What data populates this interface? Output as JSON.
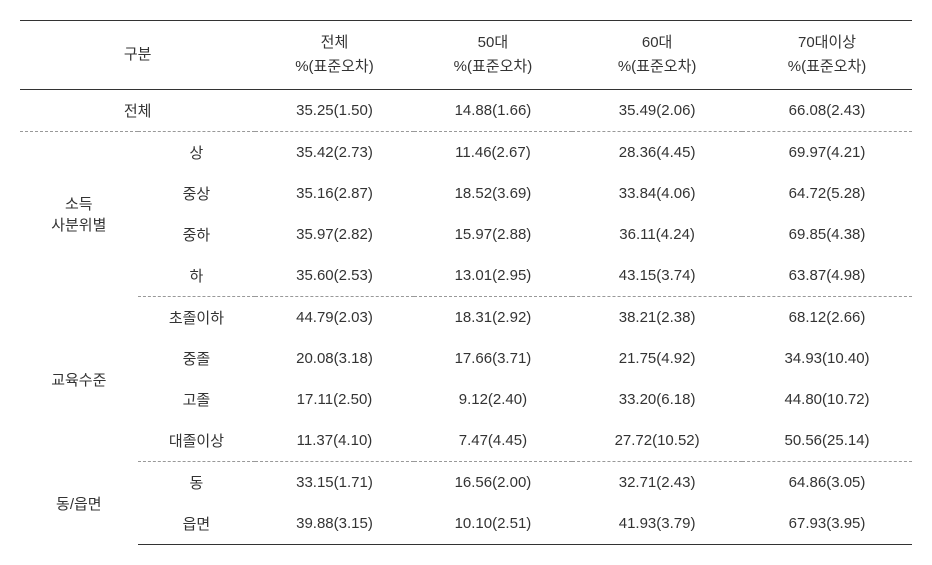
{
  "table": {
    "headers": {
      "category": "구분",
      "col1_line1": "전체",
      "col1_line2": "%(표준오차)",
      "col2_line1": "50대",
      "col2_line2": "%(표준오차)",
      "col3_line1": "60대",
      "col3_line2": "%(표준오차)",
      "col4_line1": "70대이상",
      "col4_line2": "%(표준오차)"
    },
    "total": {
      "label": "전체",
      "c1": "35.25(1.50)",
      "c2": "14.88(1.66)",
      "c3": "35.49(2.06)",
      "c4": "66.08(2.43)"
    },
    "sections": [
      {
        "category": "소득\n사분위별",
        "rows": [
          {
            "sub": "상",
            "c1": "35.42(2.73)",
            "c2": "11.46(2.67)",
            "c3": "28.36(4.45)",
            "c4": "69.97(4.21)"
          },
          {
            "sub": "중상",
            "c1": "35.16(2.87)",
            "c2": "18.52(3.69)",
            "c3": "33.84(4.06)",
            "c4": "64.72(5.28)"
          },
          {
            "sub": "중하",
            "c1": "35.97(2.82)",
            "c2": "15.97(2.88)",
            "c3": "36.11(4.24)",
            "c4": "69.85(4.38)"
          },
          {
            "sub": "하",
            "c1": "35.60(2.53)",
            "c2": "13.01(2.95)",
            "c3": "43.15(3.74)",
            "c4": "63.87(4.98)"
          }
        ]
      },
      {
        "category": "교육수준",
        "rows": [
          {
            "sub": "초졸이하",
            "c1": "44.79(2.03)",
            "c2": "18.31(2.92)",
            "c3": "38.21(2.38)",
            "c4": "68.12(2.66)"
          },
          {
            "sub": "중졸",
            "c1": "20.08(3.18)",
            "c2": "17.66(3.71)",
            "c3": "21.75(4.92)",
            "c4": "34.93(10.40)"
          },
          {
            "sub": "고졸",
            "c1": "17.11(2.50)",
            "c2": "9.12(2.40)",
            "c3": "33.20(6.18)",
            "c4": "44.80(10.72)"
          },
          {
            "sub": "대졸이상",
            "c1": "11.37(4.10)",
            "c2": "7.47(4.45)",
            "c3": "27.72(10.52)",
            "c4": "50.56(25.14)"
          }
        ]
      },
      {
        "category": "동/읍면",
        "rows": [
          {
            "sub": "동",
            "c1": "33.15(1.71)",
            "c2": "16.56(2.00)",
            "c3": "32.71(2.43)",
            "c4": "64.86(3.05)"
          },
          {
            "sub": "읍면",
            "c1": "39.88(3.15)",
            "c2": "10.10(2.51)",
            "c3": "41.93(3.79)",
            "c4": "67.93(3.95)"
          }
        ]
      }
    ]
  }
}
